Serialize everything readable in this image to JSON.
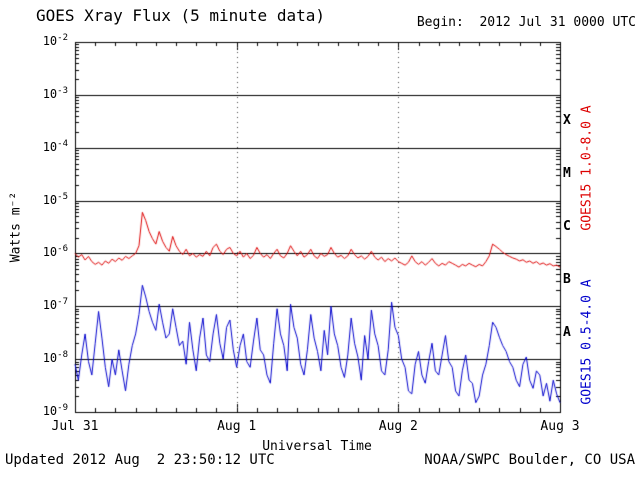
{
  "header": {
    "title": "GOES Xray Flux (5 minute data)",
    "begin": "Begin:  2012 Jul 31 0000 UTC"
  },
  "footer": {
    "updated": "Updated 2012 Aug  2 23:50:12 UTC",
    "source": "NOAA/SWPC Boulder, CO USA"
  },
  "chart_data": {
    "type": "line",
    "title": "GOES Xray Flux (5 minute data)",
    "xlabel": "Universal Time",
    "ylabel": "Watts m⁻²",
    "x_start_hours": 0,
    "x_step_hours": 0.5,
    "x_range_hours": [
      0,
      72
    ],
    "x_ticks": [
      {
        "t": 0,
        "label": "Jul 31"
      },
      {
        "t": 24,
        "label": "Aug 1"
      },
      {
        "t": 48,
        "label": "Aug 2"
      },
      {
        "t": 72,
        "label": "Aug 3"
      }
    ],
    "y_log_min": -9,
    "y_log_max": -2,
    "y_scale": "log",
    "y_tick_labels": [
      "10^-2",
      "10^-3",
      "10^-4",
      "10^-5",
      "10^-6",
      "10^-7",
      "10^-8",
      "10^-9"
    ],
    "flare_classes": [
      {
        "label": "X",
        "log10": -3.5
      },
      {
        "label": "M",
        "log10": -4.5
      },
      {
        "label": "C",
        "log10": -5.5
      },
      {
        "label": "B",
        "log10": -6.5
      },
      {
        "label": "A",
        "log10": -7.5
      }
    ],
    "day_boundaries_hours": [
      24,
      48
    ],
    "grid": "solid horizontal decade lines, dashed vertical day-boundary lines",
    "series": [
      {
        "name": "GOES15 1.0-8.0 A",
        "color": "#dd0000",
        "values": [
          1e-06,
          8.5e-07,
          9.5e-07,
          7.5e-07,
          8.8e-07,
          7e-07,
          6.2e-07,
          6.8e-07,
          6e-07,
          7.2e-07,
          6.5e-07,
          7.8e-07,
          7e-07,
          8.2e-07,
          7.4e-07,
          8.8e-07,
          8e-07,
          9e-07,
          1e-06,
          1.4e-06,
          6e-06,
          4.2e-06,
          2.6e-06,
          1.9e-06,
          1.5e-06,
          2.6e-06,
          1.7e-06,
          1.3e-06,
          1.1e-06,
          2.1e-06,
          1.4e-06,
          1.1e-06,
          9.5e-07,
          1.2e-06,
          9e-07,
          1e-06,
          8.5e-07,
          9.5e-07,
          8.8e-07,
          1.1e-06,
          9e-07,
          1.3e-06,
          1.5e-06,
          1.1e-06,
          9.5e-07,
          1.2e-06,
          1.3e-06,
          1e-06,
          9e-07,
          1.1e-06,
          8.5e-07,
          1e-06,
          8e-07,
          9.2e-07,
          1.3e-06,
          1e-06,
          8.5e-07,
          9.5e-07,
          8e-07,
          1e-06,
          1.2e-06,
          9e-07,
          8.2e-07,
          1e-06,
          1.4e-06,
          1.1e-06,
          9e-07,
          1.1e-06,
          8.5e-07,
          9.5e-07,
          1.2e-06,
          9e-07,
          8e-07,
          1e-06,
          8.8e-07,
          9.5e-07,
          1.3e-06,
          1e-06,
          8.5e-07,
          9.2e-07,
          8e-07,
          9e-07,
          1.2e-06,
          9.5e-07,
          8.2e-07,
          9e-07,
          7.8e-07,
          8.8e-07,
          1.1e-06,
          8.5e-07,
          7.5e-07,
          8.5e-07,
          7e-07,
          8e-07,
          7.2e-07,
          8.2e-07,
          7e-07,
          6.5e-07,
          6e-07,
          6.8e-07,
          9e-07,
          7e-07,
          6.2e-07,
          7e-07,
          6e-07,
          6.8e-07,
          8e-07,
          6.5e-07,
          5.8e-07,
          6.5e-07,
          6e-07,
          7e-07,
          6.5e-07,
          6e-07,
          5.5e-07,
          6.2e-07,
          5.8e-07,
          6.5e-07,
          6e-07,
          5.6e-07,
          6.2e-07,
          5.8e-07,
          7e-07,
          9e-07,
          1.5e-06,
          1.35e-06,
          1.2e-06,
          1.05e-06,
          9.5e-07,
          8.8e-07,
          8.2e-07,
          7.8e-07,
          7.2e-07,
          7.6e-07,
          6.8e-07,
          7.2e-07,
          6.5e-07,
          7e-07,
          6.2e-07,
          6.6e-07,
          6e-07,
          6.4e-07,
          5.8e-07,
          6e-07,
          5.5e-07
        ]
      },
      {
        "name": "GOES15 0.5-4.0 A",
        "color": "#0000cc",
        "values": [
          8e-09,
          4e-09,
          1.2e-08,
          3e-08,
          9e-09,
          5e-09,
          2e-08,
          8e-08,
          2.5e-08,
          7e-09,
          3e-09,
          1e-08,
          5e-09,
          1.5e-08,
          6e-09,
          2.5e-09,
          8e-09,
          1.8e-08,
          3e-08,
          7e-08,
          2.5e-07,
          1.5e-07,
          8e-08,
          5e-08,
          3.5e-08,
          1.1e-07,
          5e-08,
          2.5e-08,
          3e-08,
          9e-08,
          4e-08,
          1.8e-08,
          2.2e-08,
          8e-09,
          5e-08,
          1.5e-08,
          6e-09,
          2.5e-08,
          6e-08,
          1.2e-08,
          9e-09,
          3e-08,
          7e-08,
          2e-08,
          1e-08,
          4e-08,
          5.5e-08,
          1.5e-08,
          7e-09,
          1.8e-08,
          3e-08,
          9e-09,
          7e-09,
          2.2e-08,
          6e-08,
          1.5e-08,
          1.2e-08,
          5e-09,
          3.5e-09,
          2e-08,
          9e-08,
          3e-08,
          1.8e-08,
          6e-09,
          1.1e-07,
          4e-08,
          2.5e-08,
          8e-09,
          5e-09,
          1.5e-08,
          7e-08,
          2.5e-08,
          1.4e-08,
          6e-09,
          3.5e-08,
          1.2e-08,
          1e-07,
          3e-08,
          1.8e-08,
          7e-09,
          4.5e-09,
          1.2e-08,
          6e-08,
          2e-08,
          1.1e-08,
          4e-09,
          2.8e-08,
          1e-08,
          8.5e-08,
          3e-08,
          1.8e-08,
          6e-09,
          5e-09,
          1.5e-08,
          1.2e-07,
          4e-08,
          2.8e-08,
          1e-08,
          7e-09,
          2.5e-09,
          2.2e-09,
          8e-09,
          1.4e-08,
          5e-09,
          3.5e-09,
          9e-09,
          2e-08,
          6e-09,
          5e-09,
          1.2e-08,
          2.8e-08,
          9e-09,
          7e-09,
          2.5e-09,
          2e-09,
          6e-09,
          1.2e-08,
          4e-09,
          3.5e-09,
          1.5e-09,
          2e-09,
          5e-09,
          8e-09,
          1.8e-08,
          5e-08,
          4e-08,
          2.6e-08,
          1.8e-08,
          1.4e-08,
          9e-09,
          7e-09,
          4e-09,
          3e-09,
          8e-09,
          1.1e-08,
          4e-09,
          2.8e-09,
          6e-09,
          5e-09,
          2e-09,
          3.5e-09,
          1.6e-09,
          4e-09,
          2.2e-09,
          1.5e-09
        ]
      }
    ]
  }
}
